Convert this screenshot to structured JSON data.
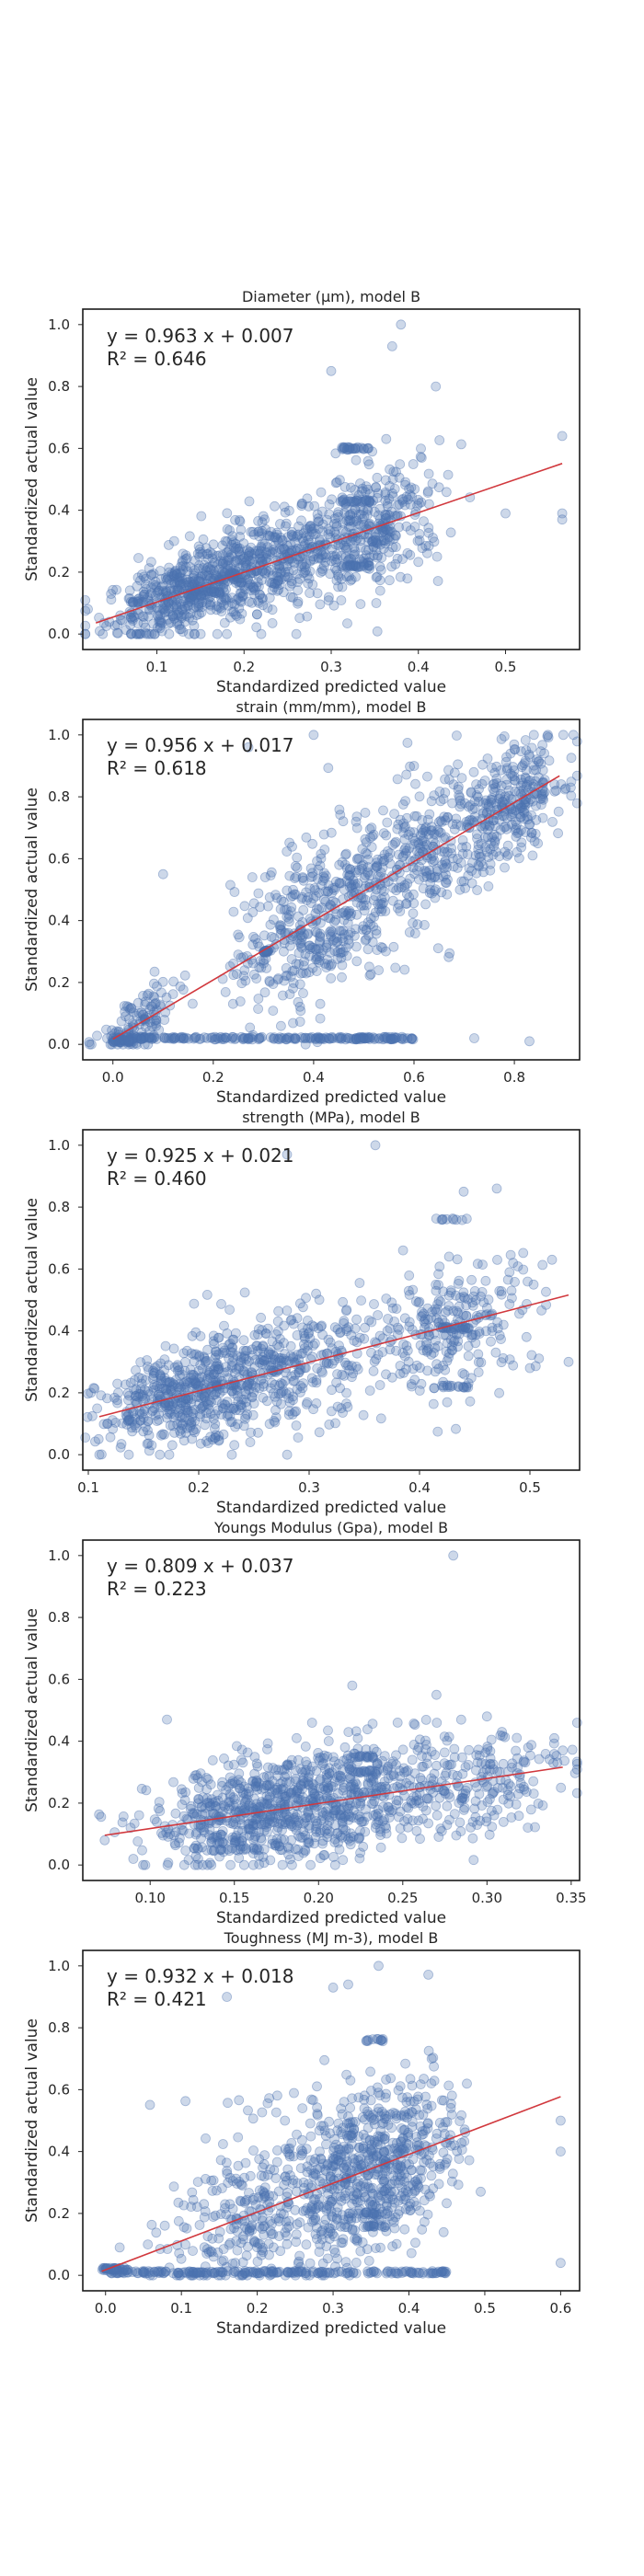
{
  "chart_data": [
    {
      "type": "scatter",
      "title": "Diameter (µm), model B",
      "xlabel": "Standardized predicted value",
      "ylabel": "Standardized actual value",
      "xlim": [
        0.015,
        0.585
      ],
      "ylim": [
        -0.05,
        1.05
      ],
      "xticks": [
        "0.1",
        "0.2",
        "0.3",
        "0.4",
        "0.5"
      ],
      "yticks": [
        "0.0",
        "0.2",
        "0.4",
        "0.6",
        "0.8",
        "1.0"
      ],
      "equation": "y = 0.963 x + 0.007",
      "r2": "R² = 0.646",
      "fit": {
        "slope": 0.963,
        "intercept": 0.007,
        "x_range": [
          0.03,
          0.565
        ]
      },
      "clusters": [
        {
          "cx": 0.14,
          "sx": 0.05,
          "n": 500,
          "spread": 0.06
        },
        {
          "cx": 0.24,
          "sx": 0.06,
          "n": 400,
          "spread": 0.08
        },
        {
          "cx": 0.35,
          "sx": 0.04,
          "n": 300,
          "spread": 0.1
        }
      ],
      "bands": [
        {
          "x0": 0.31,
          "x1": 0.345,
          "y": 0.6,
          "n": 25
        },
        {
          "x0": 0.31,
          "x1": 0.345,
          "y": 0.43,
          "n": 20
        },
        {
          "x0": 0.31,
          "x1": 0.345,
          "y": 0.22,
          "n": 20
        },
        {
          "x0": 0.07,
          "x1": 0.12,
          "y": 0.1,
          "n": 10
        }
      ],
      "outliers": [
        [
          0.38,
          1.0
        ],
        [
          0.37,
          0.93
        ],
        [
          0.565,
          0.64
        ],
        [
          0.565,
          0.39
        ],
        [
          0.565,
          0.37
        ],
        [
          0.5,
          0.39
        ],
        [
          0.26,
          0.0
        ],
        [
          0.3,
          0.85
        ],
        [
          0.42,
          0.8
        ]
      ]
    },
    {
      "type": "scatter",
      "title": "strain (mm/mm), model B",
      "xlabel": "Standardized predicted value",
      "ylabel": "Standardized actual value",
      "xlim": [
        -0.06,
        0.93
      ],
      "ylim": [
        -0.05,
        1.05
      ],
      "xticks": [
        "0.0",
        "0.2",
        "0.4",
        "0.6",
        "0.8"
      ],
      "yticks": [
        "0.0",
        "0.2",
        "0.4",
        "0.6",
        "0.8",
        "1.0"
      ],
      "equation": "y = 0.956 x + 0.017",
      "r2": "R² = 0.618",
      "fit": {
        "slope": 0.956,
        "intercept": 0.017,
        "x_range": [
          0.0,
          0.89
        ]
      },
      "clusters": [
        {
          "cx": 0.4,
          "sx": 0.08,
          "n": 400,
          "spread": 0.13
        },
        {
          "cx": 0.62,
          "sx": 0.08,
          "n": 350,
          "spread": 0.12
        },
        {
          "cx": 0.8,
          "sx": 0.05,
          "n": 250,
          "spread": 0.09
        },
        {
          "cx": 0.05,
          "sx": 0.04,
          "n": 120,
          "spread": 0.05
        }
      ],
      "bands": [
        {
          "x0": 0.0,
          "x1": 0.6,
          "y": 0.02,
          "n": 220
        },
        {
          "x0": 0.3,
          "x1": 0.31,
          "y": 0.3,
          "n": 20
        },
        {
          "x0": 0.0,
          "x1": 0.04,
          "y": 0.01,
          "n": 30
        }
      ],
      "outliers": [
        [
          0.4,
          1.0
        ],
        [
          0.27,
          0.96
        ],
        [
          0.6,
          0.9
        ],
        [
          0.1,
          0.55
        ],
        [
          0.72,
          0.02
        ],
        [
          0.83,
          0.01
        ],
        [
          0.88,
          0.84
        ]
      ]
    },
    {
      "type": "scatter",
      "title": "strength (MPa), model B",
      "xlabel": "Standardized predicted value",
      "ylabel": "Standardized actual value",
      "xlim": [
        0.095,
        0.545
      ],
      "ylim": [
        -0.05,
        1.05
      ],
      "xticks": [
        "0.1",
        "0.2",
        "0.3",
        "0.4",
        "0.5"
      ],
      "yticks": [
        "0.0",
        "0.2",
        "0.4",
        "0.6",
        "0.8",
        "1.0"
      ],
      "equation": "y = 0.925 x + 0.021",
      "r2": "R² = 0.460",
      "fit": {
        "slope": 0.925,
        "intercept": 0.021,
        "x_range": [
          0.11,
          0.535
        ]
      },
      "clusters": [
        {
          "cx": 0.19,
          "sx": 0.04,
          "n": 450,
          "spread": 0.07
        },
        {
          "cx": 0.27,
          "sx": 0.05,
          "n": 350,
          "spread": 0.1
        },
        {
          "cx": 0.43,
          "sx": 0.04,
          "n": 250,
          "spread": 0.1
        }
      ],
      "bands": [
        {
          "x0": 0.415,
          "x1": 0.445,
          "y": 0.76,
          "n": 10
        },
        {
          "x0": 0.415,
          "x1": 0.445,
          "y": 0.41,
          "n": 25
        },
        {
          "x0": 0.415,
          "x1": 0.445,
          "y": 0.22,
          "n": 15
        }
      ],
      "outliers": [
        [
          0.36,
          1.0
        ],
        [
          0.28,
          0.97
        ],
        [
          0.47,
          0.86
        ],
        [
          0.52,
          0.63
        ],
        [
          0.11,
          0.0
        ],
        [
          0.23,
          0.0
        ],
        [
          0.5,
          0.28
        ],
        [
          0.535,
          0.3
        ],
        [
          0.44,
          0.85
        ]
      ]
    },
    {
      "type": "scatter",
      "title": "Youngs Modulus (Gpa), model B",
      "xlabel": "Standardized predicted value",
      "ylabel": "Standardized actual value",
      "xlim": [
        0.06,
        0.355
      ],
      "ylim": [
        -0.05,
        1.05
      ],
      "xticks": [
        "0.10",
        "0.15",
        "0.20",
        "0.25",
        "0.30",
        "0.35"
      ],
      "yticks": [
        "0.0",
        "0.2",
        "0.4",
        "0.6",
        "0.8",
        "1.0"
      ],
      "equation": "y = 0.809 x + 0.037",
      "r2": "R² = 0.223",
      "fit": {
        "slope": 0.809,
        "intercept": 0.037,
        "x_range": [
          0.073,
          0.345
        ]
      },
      "clusters": [
        {
          "cx": 0.16,
          "sx": 0.03,
          "n": 500,
          "spread": 0.08
        },
        {
          "cx": 0.22,
          "sx": 0.03,
          "n": 400,
          "spread": 0.09
        },
        {
          "cx": 0.29,
          "sx": 0.03,
          "n": 200,
          "spread": 0.09
        }
      ],
      "bands": [
        {
          "x0": 0.22,
          "x1": 0.235,
          "y": 0.35,
          "n": 15
        },
        {
          "x0": 0.22,
          "x1": 0.235,
          "y": 0.3,
          "n": 15
        },
        {
          "x0": 0.13,
          "x1": 0.165,
          "y": 0.05,
          "n": 20
        }
      ],
      "outliers": [
        [
          0.28,
          1.0
        ],
        [
          0.22,
          0.58
        ],
        [
          0.3,
          0.48
        ],
        [
          0.11,
          0.47
        ],
        [
          0.34,
          0.41
        ],
        [
          0.073,
          0.08
        ],
        [
          0.09,
          0.02
        ],
        [
          0.345,
          0.37
        ],
        [
          0.27,
          0.55
        ]
      ]
    },
    {
      "type": "scatter",
      "title": "Toughness (MJ m-3), model B",
      "xlabel": "Standardized predicted value",
      "ylabel": "Standardized actual value",
      "xlim": [
        -0.03,
        0.625
      ],
      "ylim": [
        -0.05,
        1.05
      ],
      "xticks": [
        "0.0",
        "0.1",
        "0.2",
        "0.3",
        "0.4",
        "0.5",
        "0.6"
      ],
      "yticks": [
        "0.0",
        "0.2",
        "0.4",
        "0.6",
        "0.8",
        "1.0"
      ],
      "equation": "y = 0.932 x + 0.018",
      "r2": "R² = 0.421",
      "fit": {
        "slope": 0.932,
        "intercept": 0.018,
        "x_range": [
          -0.005,
          0.6
        ]
      },
      "clusters": [
        {
          "cx": 0.2,
          "sx": 0.06,
          "n": 300,
          "spread": 0.15
        },
        {
          "cx": 0.33,
          "sx": 0.05,
          "n": 450,
          "spread": 0.13
        },
        {
          "cx": 0.4,
          "sx": 0.04,
          "n": 200,
          "spread": 0.12
        }
      ],
      "bands": [
        {
          "x0": 0.0,
          "x1": 0.45,
          "y": 0.01,
          "n": 200
        },
        {
          "x0": 0.34,
          "x1": 0.37,
          "y": 0.76,
          "n": 12
        },
        {
          "x0": 0.34,
          "x1": 0.37,
          "y": 0.16,
          "n": 15
        },
        {
          "x0": 0.34,
          "x1": 0.37,
          "y": 0.2,
          "n": 12
        },
        {
          "x0": -0.005,
          "x1": 0.03,
          "y": 0.02,
          "n": 40
        }
      ],
      "outliers": [
        [
          0.36,
          1.0
        ],
        [
          0.32,
          0.94
        ],
        [
          0.3,
          0.93
        ],
        [
          0.6,
          0.5
        ],
        [
          0.6,
          0.4
        ],
        [
          0.6,
          0.04
        ],
        [
          0.16,
          0.9
        ],
        [
          0.43,
          0.7
        ]
      ]
    }
  ]
}
